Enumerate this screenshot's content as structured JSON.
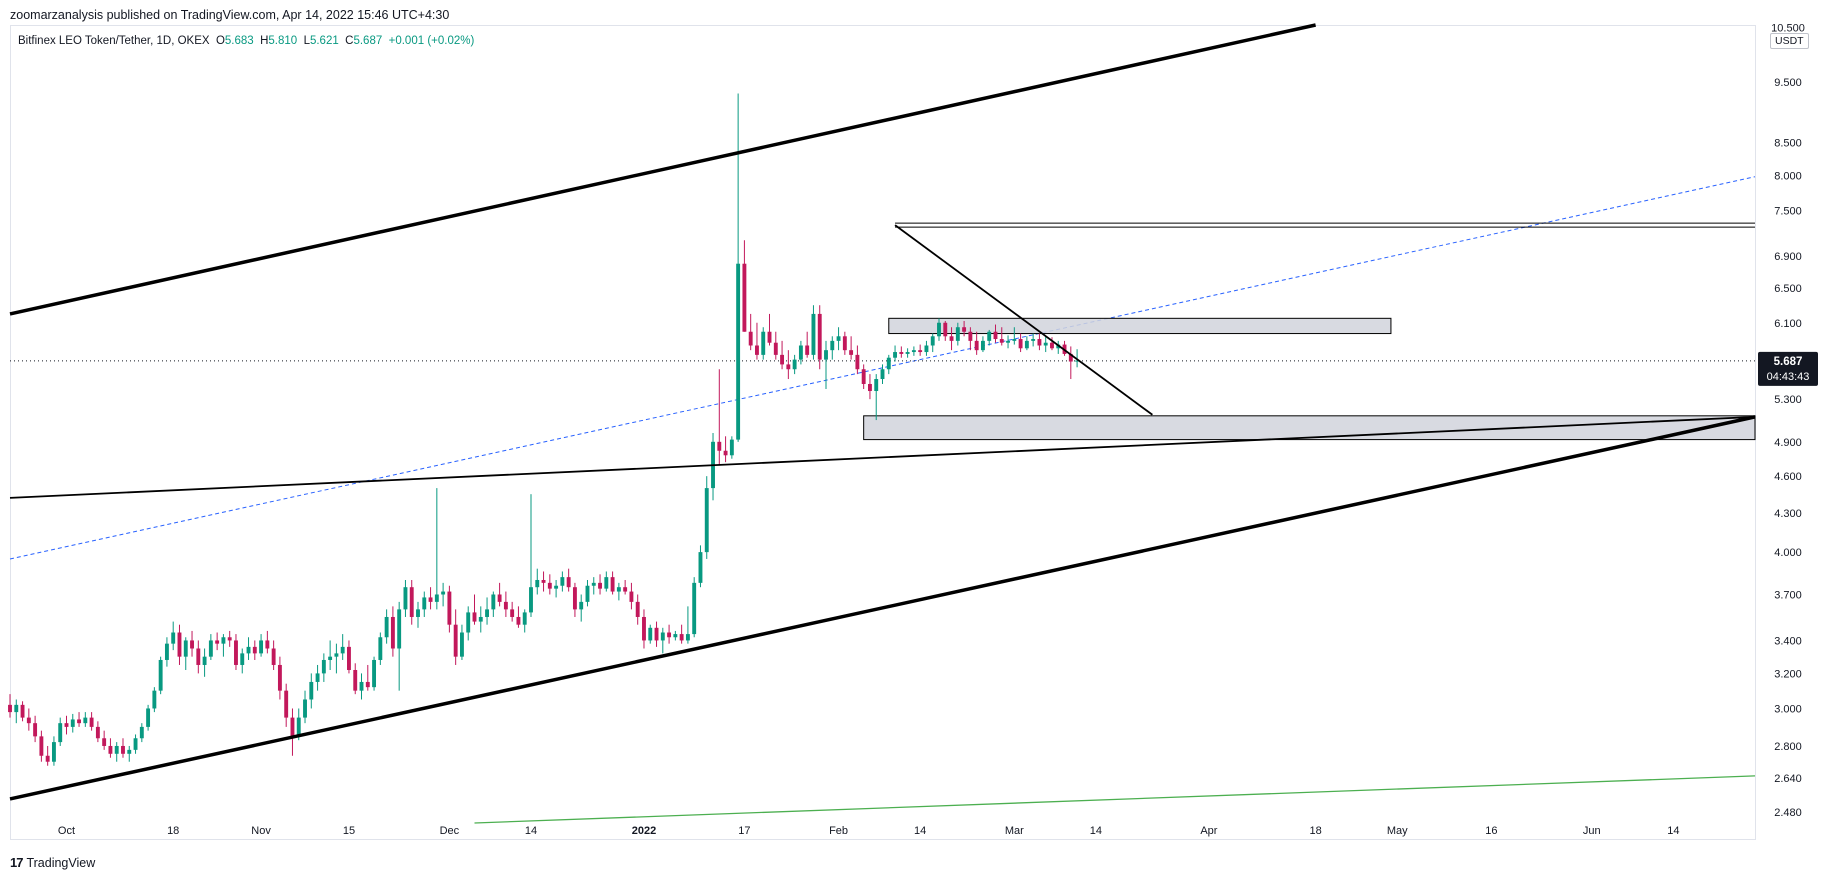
{
  "header": {
    "publisher": "zoomarzanalysis published on TradingView.com, Apr 14, 2022 15:46 UTC+4:30"
  },
  "symbol": {
    "name": "Bitfinex LEO Token/Tether, 1D, OKEX",
    "open_label": "O",
    "open": "5.683",
    "high_label": "H",
    "high": "5.810",
    "low_label": "L",
    "low": "5.621",
    "close_label": "C",
    "close": "5.687",
    "change": "+0.001 (+0.02%)"
  },
  "price_axis": {
    "unit": "USDT",
    "last_price": "5.687",
    "countdown": "04:43:43"
  },
  "footer": {
    "logo_mark": "17",
    "brand": "TradingView"
  },
  "colors": {
    "up": "#089981",
    "down": "#f23645",
    "down_candle": "#c2185b",
    "trendline": "#000000",
    "dashed": "#2962ff",
    "green_line": "#4caf50",
    "zone": "#d1d4dc"
  },
  "chart_data": {
    "type": "candlestick",
    "scale": "log",
    "y_ticks": [
      "10.500",
      "9.500",
      "8.500",
      "8.000",
      "7.500",
      "6.900",
      "6.500",
      "6.100",
      "5.300",
      "4.900",
      "4.600",
      "4.300",
      "4.000",
      "3.700",
      "3.400",
      "3.200",
      "3.000",
      "2.800",
      "2.640",
      "2.480"
    ],
    "y_tick_values": [
      10.5,
      9.5,
      8.5,
      8.0,
      7.5,
      6.9,
      6.5,
      6.1,
      5.3,
      4.9,
      4.6,
      4.3,
      4.0,
      3.7,
      3.4,
      3.2,
      3.0,
      2.8,
      2.64,
      2.48
    ],
    "x_ticks": [
      {
        "label": "Oct",
        "date": "2021-10-01"
      },
      {
        "label": "18",
        "date": "2021-10-18"
      },
      {
        "label": "Nov",
        "date": "2021-11-01"
      },
      {
        "label": "15",
        "date": "2021-11-15"
      },
      {
        "label": "Dec",
        "date": "2021-12-01"
      },
      {
        "label": "14",
        "date": "2021-12-14"
      },
      {
        "label": "2022",
        "date": "2022-01-01"
      },
      {
        "label": "17",
        "date": "2022-01-17"
      },
      {
        "label": "Feb",
        "date": "2022-02-01"
      },
      {
        "label": "14",
        "date": "2022-02-14"
      },
      {
        "label": "Mar",
        "date": "2022-03-01"
      },
      {
        "label": "14",
        "date": "2022-03-14"
      },
      {
        "label": "Apr",
        "date": "2022-04-01"
      },
      {
        "label": "18",
        "date": "2022-04-18"
      },
      {
        "label": "May",
        "date": "2022-05-01"
      },
      {
        "label": "16",
        "date": "2022-05-16"
      },
      {
        "label": "Jun",
        "date": "2022-06-01"
      },
      {
        "label": "14",
        "date": "2022-06-14"
      }
    ],
    "x_range": [
      "2021-09-22",
      "2022-06-27"
    ],
    "y_range": [
      2.43,
      10.55
    ],
    "candles_start": "2021-09-22",
    "ohlc": [
      [
        3.02,
        3.08,
        2.95,
        2.98
      ],
      [
        2.98,
        3.05,
        2.92,
        3.02
      ],
      [
        3.02,
        3.04,
        2.93,
        2.95
      ],
      [
        2.95,
        3.0,
        2.88,
        2.92
      ],
      [
        2.92,
        2.96,
        2.82,
        2.85
      ],
      [
        2.85,
        2.88,
        2.72,
        2.75
      ],
      [
        2.75,
        2.8,
        2.7,
        2.72
      ],
      [
        2.72,
        2.85,
        2.7,
        2.82
      ],
      [
        2.82,
        2.95,
        2.8,
        2.92
      ],
      [
        2.92,
        2.96,
        2.86,
        2.9
      ],
      [
        2.9,
        2.97,
        2.87,
        2.94
      ],
      [
        2.94,
        2.98,
        2.9,
        2.92
      ],
      [
        2.92,
        2.98,
        2.9,
        2.95
      ],
      [
        2.95,
        2.98,
        2.88,
        2.9
      ],
      [
        2.9,
        2.93,
        2.82,
        2.84
      ],
      [
        2.84,
        2.88,
        2.78,
        2.8
      ],
      [
        2.8,
        2.84,
        2.74,
        2.76
      ],
      [
        2.76,
        2.82,
        2.72,
        2.8
      ],
      [
        2.8,
        2.84,
        2.74,
        2.76
      ],
      [
        2.76,
        2.8,
        2.72,
        2.78
      ],
      [
        2.78,
        2.86,
        2.76,
        2.84
      ],
      [
        2.84,
        2.92,
        2.82,
        2.9
      ],
      [
        2.9,
        3.02,
        2.88,
        3.0
      ],
      [
        3.0,
        3.12,
        2.98,
        3.1
      ],
      [
        3.1,
        3.3,
        3.08,
        3.28
      ],
      [
        3.28,
        3.42,
        3.24,
        3.38
      ],
      [
        3.38,
        3.52,
        3.34,
        3.45
      ],
      [
        3.45,
        3.5,
        3.25,
        3.3
      ],
      [
        3.3,
        3.42,
        3.22,
        3.4
      ],
      [
        3.4,
        3.46,
        3.3,
        3.35
      ],
      [
        3.35,
        3.4,
        3.2,
        3.25
      ],
      [
        3.25,
        3.35,
        3.18,
        3.3
      ],
      [
        3.3,
        3.44,
        3.28,
        3.4
      ],
      [
        3.4,
        3.45,
        3.34,
        3.38
      ],
      [
        3.38,
        3.44,
        3.3,
        3.42
      ],
      [
        3.42,
        3.46,
        3.36,
        3.4
      ],
      [
        3.4,
        3.44,
        3.22,
        3.25
      ],
      [
        3.25,
        3.35,
        3.2,
        3.32
      ],
      [
        3.32,
        3.42,
        3.28,
        3.36
      ],
      [
        3.36,
        3.4,
        3.28,
        3.32
      ],
      [
        3.32,
        3.44,
        3.3,
        3.4
      ],
      [
        3.4,
        3.46,
        3.32,
        3.35
      ],
      [
        3.35,
        3.4,
        3.22,
        3.25
      ],
      [
        3.25,
        3.3,
        3.05,
        3.1
      ],
      [
        3.1,
        3.14,
        2.9,
        2.95
      ],
      [
        2.95,
        3.0,
        2.75,
        2.85
      ],
      [
        2.85,
        3.0,
        2.83,
        2.95
      ],
      [
        2.95,
        3.1,
        2.92,
        3.05
      ],
      [
        3.05,
        3.2,
        3.0,
        3.15
      ],
      [
        3.15,
        3.25,
        3.1,
        3.2
      ],
      [
        3.2,
        3.32,
        3.15,
        3.28
      ],
      [
        3.28,
        3.4,
        3.22,
        3.3
      ],
      [
        3.3,
        3.38,
        3.2,
        3.32
      ],
      [
        3.32,
        3.44,
        3.28,
        3.36
      ],
      [
        3.36,
        3.4,
        3.2,
        3.22
      ],
      [
        3.22,
        3.26,
        3.08,
        3.1
      ],
      [
        3.1,
        3.2,
        3.05,
        3.15
      ],
      [
        3.15,
        3.25,
        3.1,
        3.12
      ],
      [
        3.12,
        3.3,
        3.1,
        3.28
      ],
      [
        3.28,
        3.45,
        3.25,
        3.42
      ],
      [
        3.42,
        3.6,
        3.38,
        3.55
      ],
      [
        3.55,
        3.62,
        3.3,
        3.35
      ],
      [
        3.35,
        3.65,
        3.1,
        3.6
      ],
      [
        3.6,
        3.8,
        3.55,
        3.75
      ],
      [
        3.75,
        3.8,
        3.5,
        3.55
      ],
      [
        3.55,
        3.65,
        3.48,
        3.6
      ],
      [
        3.6,
        3.72,
        3.55,
        3.68
      ],
      [
        3.68,
        3.75,
        3.6,
        3.65
      ],
      [
        3.65,
        4.5,
        3.6,
        3.7
      ],
      [
        3.7,
        3.78,
        3.62,
        3.72
      ],
      [
        3.72,
        3.76,
        3.45,
        3.5
      ],
      [
        3.5,
        3.6,
        3.25,
        3.3
      ],
      [
        3.3,
        3.5,
        3.28,
        3.45
      ],
      [
        3.45,
        3.62,
        3.4,
        3.58
      ],
      [
        3.58,
        3.7,
        3.5,
        3.52
      ],
      [
        3.52,
        3.62,
        3.45,
        3.55
      ],
      [
        3.55,
        3.68,
        3.5,
        3.6
      ],
      [
        3.6,
        3.72,
        3.55,
        3.7
      ],
      [
        3.7,
        3.78,
        3.62,
        3.65
      ],
      [
        3.65,
        3.72,
        3.55,
        3.6
      ],
      [
        3.6,
        3.65,
        3.52,
        3.55
      ],
      [
        3.55,
        3.62,
        3.48,
        3.5
      ],
      [
        3.5,
        3.6,
        3.45,
        3.58
      ],
      [
        3.58,
        4.45,
        3.55,
        3.75
      ],
      [
        3.75,
        3.88,
        3.7,
        3.8
      ],
      [
        3.8,
        3.86,
        3.72,
        3.78
      ],
      [
        3.78,
        3.84,
        3.7,
        3.74
      ],
      [
        3.74,
        3.8,
        3.68,
        3.76
      ],
      [
        3.76,
        3.86,
        3.72,
        3.82
      ],
      [
        3.82,
        3.88,
        3.72,
        3.75
      ],
      [
        3.75,
        3.78,
        3.55,
        3.6
      ],
      [
        3.6,
        3.7,
        3.52,
        3.65
      ],
      [
        3.65,
        3.8,
        3.62,
        3.76
      ],
      [
        3.76,
        3.82,
        3.7,
        3.78
      ],
      [
        3.78,
        3.84,
        3.7,
        3.74
      ],
      [
        3.74,
        3.86,
        3.72,
        3.82
      ],
      [
        3.82,
        3.86,
        3.7,
        3.72
      ],
      [
        3.72,
        3.78,
        3.66,
        3.75
      ],
      [
        3.75,
        3.8,
        3.7,
        3.72
      ],
      [
        3.72,
        3.78,
        3.6,
        3.65
      ],
      [
        3.65,
        3.7,
        3.5,
        3.55
      ],
      [
        3.55,
        3.6,
        3.35,
        3.4
      ],
      [
        3.4,
        3.5,
        3.38,
        3.48
      ],
      [
        3.48,
        3.52,
        3.36,
        3.4
      ],
      [
        3.4,
        3.48,
        3.32,
        3.45
      ],
      [
        3.45,
        3.5,
        3.38,
        3.42
      ],
      [
        3.42,
        3.46,
        3.4,
        3.44
      ],
      [
        3.44,
        3.5,
        3.38,
        3.4
      ],
      [
        3.4,
        3.62,
        3.38,
        3.44
      ],
      [
        3.44,
        3.82,
        3.42,
        3.78
      ],
      [
        3.78,
        4.05,
        3.75,
        4.0
      ],
      [
        4.0,
        4.6,
        3.95,
        4.5
      ],
      [
        4.5,
        4.98,
        4.4,
        4.9
      ],
      [
        4.9,
        5.6,
        4.7,
        4.82
      ],
      [
        4.82,
        4.95,
        4.72,
        4.78
      ],
      [
        4.78,
        4.95,
        4.75,
        4.92
      ],
      [
        4.92,
        9.3,
        4.9,
        6.8
      ],
      [
        6.8,
        7.1,
        6.0,
        6.0
      ],
      [
        6.0,
        6.2,
        5.8,
        5.85
      ],
      [
        5.85,
        6.1,
        5.7,
        5.75
      ],
      [
        5.75,
        6.05,
        5.7,
        6.0
      ],
      [
        6.0,
        6.2,
        5.85,
        5.88
      ],
      [
        5.88,
        6.0,
        5.7,
        5.75
      ],
      [
        5.75,
        5.9,
        5.6,
        5.65
      ],
      [
        5.65,
        5.8,
        5.5,
        5.6
      ],
      [
        5.6,
        5.75,
        5.55,
        5.7
      ],
      [
        5.7,
        5.9,
        5.65,
        5.85
      ],
      [
        5.85,
        6.0,
        5.72,
        5.75
      ],
      [
        5.75,
        6.3,
        5.7,
        6.2
      ],
      [
        6.2,
        6.3,
        5.6,
        5.7
      ],
      [
        5.7,
        5.9,
        5.4,
        5.8
      ],
      [
        5.8,
        5.95,
        5.7,
        5.9
      ],
      [
        5.9,
        6.05,
        5.8,
        5.95
      ],
      [
        5.95,
        6.0,
        5.75,
        5.8
      ],
      [
        5.8,
        5.95,
        5.7,
        5.75
      ],
      [
        5.75,
        5.85,
        5.55,
        5.6
      ],
      [
        5.6,
        5.65,
        5.4,
        5.45
      ],
      [
        5.45,
        5.55,
        5.3,
        5.38
      ],
      [
        5.38,
        5.55,
        5.1,
        5.5
      ],
      [
        5.5,
        5.65,
        5.45,
        5.6
      ],
      [
        5.6,
        5.75,
        5.55,
        5.72
      ],
      [
        5.72,
        5.85,
        5.68,
        5.78
      ],
      [
        5.78,
        5.84,
        5.72,
        5.76
      ],
      [
        5.76,
        5.82,
        5.72,
        5.78
      ],
      [
        5.78,
        5.84,
        5.74,
        5.8
      ],
      [
        5.8,
        5.86,
        5.74,
        5.78
      ],
      [
        5.78,
        5.9,
        5.74,
        5.85
      ],
      [
        5.85,
        5.98,
        5.78,
        5.95
      ],
      [
        5.95,
        6.15,
        5.9,
        6.1
      ],
      [
        6.1,
        6.12,
        5.9,
        5.95
      ],
      [
        5.95,
        6.05,
        5.8,
        5.9
      ],
      [
        5.9,
        6.1,
        5.85,
        6.05
      ],
      [
        6.05,
        6.12,
        5.95,
        6.0
      ],
      [
        6.0,
        6.05,
        5.8,
        5.9
      ],
      [
        5.9,
        6.0,
        5.75,
        5.8
      ],
      [
        5.8,
        5.95,
        5.78,
        5.9
      ],
      [
        5.9,
        6.02,
        5.85,
        6.0
      ],
      [
        6.0,
        6.08,
        5.88,
        5.92
      ],
      [
        5.92,
        6.05,
        5.85,
        5.88
      ],
      [
        5.88,
        5.96,
        5.82,
        5.9
      ],
      [
        5.9,
        6.05,
        5.86,
        5.92
      ],
      [
        5.92,
        5.98,
        5.78,
        5.82
      ],
      [
        5.82,
        5.95,
        5.8,
        5.9
      ],
      [
        5.9,
        5.98,
        5.84,
        5.92
      ],
      [
        5.92,
        5.98,
        5.8,
        5.85
      ],
      [
        5.85,
        5.95,
        5.78,
        5.88
      ],
      [
        5.88,
        5.94,
        5.8,
        5.82
      ],
      [
        5.82,
        5.9,
        5.76,
        5.86
      ],
      [
        5.86,
        5.9,
        5.74,
        5.76
      ],
      [
        5.76,
        5.84,
        5.5,
        5.68
      ],
      [
        5.68,
        5.81,
        5.62,
        5.69
      ]
    ],
    "drawings": [
      {
        "type": "trendline",
        "name": "upper-channel",
        "from": [
          "2021-09-22",
          6.2
        ],
        "to": [
          "2022-04-18",
          10.55
        ]
      },
      {
        "type": "trendline",
        "name": "lower-channel",
        "from": [
          "2021-09-22",
          2.54
        ],
        "to": [
          "2022-06-27",
          5.13
        ]
      },
      {
        "type": "trendline",
        "name": "mid-trendline",
        "from": [
          "2021-09-22",
          4.42
        ],
        "to": [
          "2022-06-27",
          5.13
        ]
      },
      {
        "type": "trendline",
        "name": "descending-line",
        "from": [
          "2022-02-10",
          7.3
        ],
        "to": [
          "2022-03-23",
          5.15
        ]
      },
      {
        "type": "trendline",
        "name": "green-line",
        "from": [
          "2021-12-05",
          2.43
        ],
        "to": [
          "2022-06-27",
          2.65
        ]
      },
      {
        "type": "dashed",
        "name": "blue-dashed",
        "from": [
          "2021-09-22",
          3.95
        ],
        "to": [
          "2022-06-27",
          7.98
        ]
      },
      {
        "type": "zone",
        "name": "upper-resistance",
        "from": [
          "2022-02-09",
          6.15
        ],
        "to": [
          "2022-04-30",
          5.98
        ]
      },
      {
        "type": "zone",
        "name": "support-zone",
        "from": [
          "2022-02-05",
          5.14
        ],
        "to": [
          "2022-06-27",
          4.92
        ]
      },
      {
        "type": "hline",
        "name": "top-line",
        "from": "2022-02-10",
        "to": "2022-06-27",
        "y": 7.3
      }
    ]
  }
}
